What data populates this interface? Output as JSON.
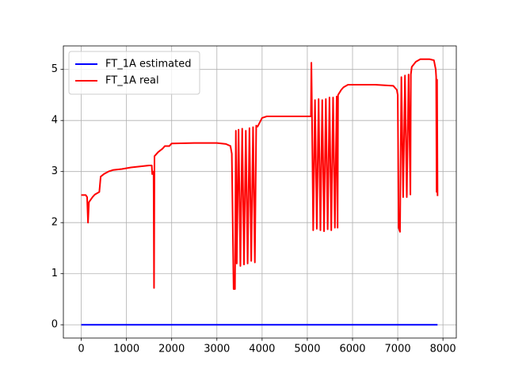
{
  "chart_data": {
    "type": "line",
    "series": [
      {
        "name": "FT_1A estimated",
        "color": "#0000ff",
        "x": [
          0,
          7880
        ],
        "values": [
          0,
          0
        ]
      },
      {
        "name": "FT_1A real",
        "color": "#ff0000",
        "x": [
          0,
          100,
          130,
          150,
          170,
          250,
          300,
          400,
          430,
          500,
          600,
          700,
          900,
          1100,
          1300,
          1500,
          1560,
          1570,
          1600,
          1610,
          1620,
          1700,
          1800,
          1850,
          1950,
          2000,
          2500,
          3000,
          3200,
          3300,
          3330,
          3370,
          3400,
          3420,
          3440,
          3480,
          3520,
          3560,
          3600,
          3640,
          3680,
          3720,
          3760,
          3800,
          3840,
          3870,
          3900,
          4000,
          4100,
          4500,
          5000,
          5080,
          5090,
          5100,
          5130,
          5170,
          5210,
          5250,
          5290,
          5330,
          5370,
          5410,
          5450,
          5490,
          5530,
          5570,
          5610,
          5650,
          5670,
          5680,
          5750,
          5800,
          5900,
          6500,
          6900,
          6980,
          7000,
          7020,
          7050,
          7080,
          7120,
          7160,
          7200,
          7240,
          7280,
          7290,
          7310,
          7400,
          7500,
          7700,
          7800,
          7840,
          7850,
          7860,
          7870,
          7880
        ],
        "values": [
          2.54,
          2.54,
          2.5,
          2.0,
          2.4,
          2.5,
          2.55,
          2.6,
          2.9,
          2.95,
          3.0,
          3.03,
          3.05,
          3.08,
          3.1,
          3.12,
          3.12,
          2.95,
          3.0,
          0.72,
          3.3,
          3.38,
          3.45,
          3.5,
          3.5,
          3.55,
          3.56,
          3.56,
          3.54,
          3.5,
          3.35,
          0.7,
          0.7,
          3.8,
          1.2,
          3.82,
          1.15,
          3.84,
          1.18,
          3.8,
          1.2,
          3.85,
          1.25,
          3.87,
          1.22,
          3.9,
          3.88,
          4.05,
          4.08,
          4.08,
          4.08,
          4.08,
          5.13,
          4.4,
          1.85,
          4.4,
          1.88,
          4.42,
          1.85,
          4.4,
          1.83,
          4.42,
          1.87,
          4.45,
          1.85,
          4.45,
          1.9,
          4.47,
          1.9,
          4.5,
          4.6,
          4.65,
          4.7,
          4.7,
          4.68,
          4.6,
          4.5,
          1.9,
          1.82,
          4.85,
          2.5,
          4.88,
          2.5,
          4.9,
          2.55,
          4.9,
          5.05,
          5.15,
          5.2,
          5.2,
          5.18,
          5.0,
          4.85,
          2.6,
          4.8,
          2.52
        ]
      }
    ],
    "xlim": [
      -395,
      8295
    ],
    "ylim": [
      -0.26,
      5.46
    ],
    "xticks": [
      0,
      1000,
      2000,
      3000,
      4000,
      5000,
      6000,
      7000,
      8000
    ],
    "yticks": [
      0,
      1,
      2,
      3,
      4,
      5
    ],
    "grid": true,
    "legend": "upper-left"
  }
}
